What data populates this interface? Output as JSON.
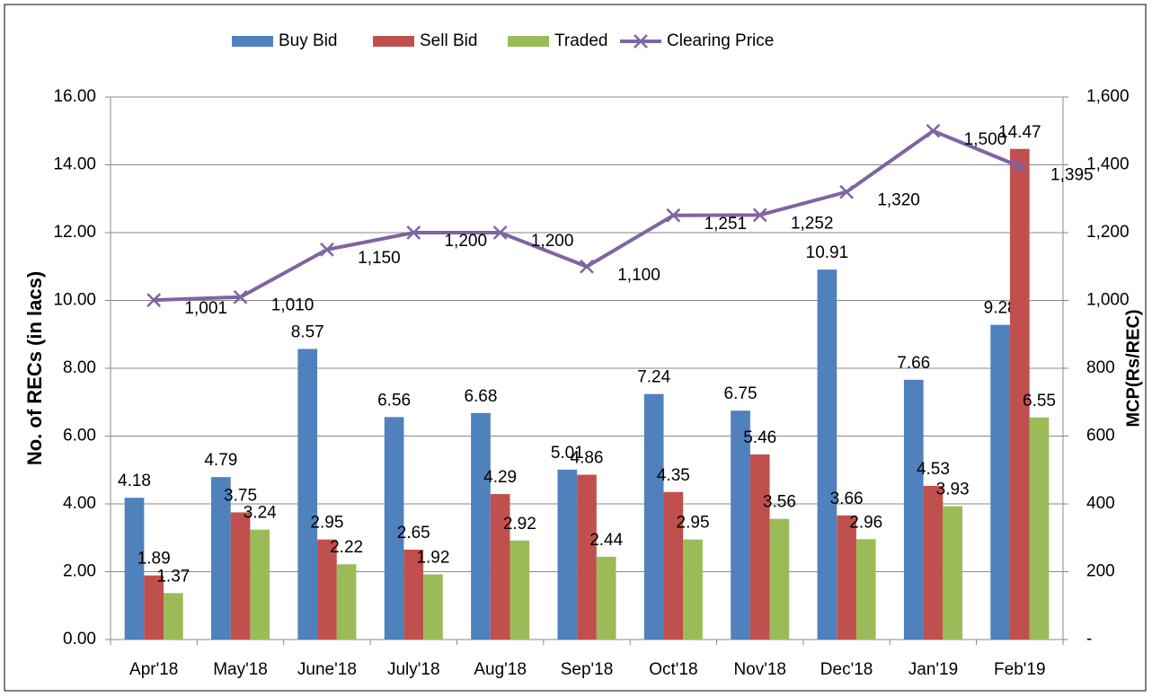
{
  "chart_data": {
    "type": "bar",
    "categories": [
      "Apr'18",
      "May'18",
      "June'18",
      "July'18",
      "Aug'18",
      "Sep'18",
      "Oct'18",
      "Nov'18",
      "Dec'18",
      "Jan'19",
      "Feb'19"
    ],
    "series": [
      {
        "name": "Buy Bid",
        "color": "#4f81bd",
        "values": [
          4.18,
          4.79,
          8.57,
          6.56,
          6.68,
          5.01,
          7.24,
          6.75,
          10.91,
          7.66,
          9.28
        ]
      },
      {
        "name": "Sell Bid",
        "color": "#c0504d",
        "values": [
          1.89,
          3.75,
          2.95,
          2.65,
          4.29,
          4.86,
          4.35,
          5.46,
          3.66,
          4.53,
          14.47
        ]
      },
      {
        "name": "Traded",
        "color": "#9bbb59",
        "values": [
          1.37,
          3.24,
          2.22,
          1.92,
          2.92,
          2.44,
          2.95,
          3.56,
          2.96,
          3.93,
          6.55
        ]
      },
      {
        "name": "Clearing Price",
        "color": "#8064a2",
        "type": "line",
        "axis": "y2",
        "values": [
          1001,
          1010,
          1150,
          1200,
          1200,
          1100,
          1251,
          1252,
          1320,
          1500,
          1395
        ],
        "value_labels": [
          "1,001",
          "1,010",
          "1,150",
          "1,200",
          "1,200",
          "1,100",
          "1,251",
          "1,252",
          "1,320",
          "1,500",
          "1,395"
        ]
      }
    ],
    "y_label": "No. of RECs (in lacs)",
    "y2_label": "MCP(Rs/REC)",
    "ylim": [
      0,
      16
    ],
    "yticks": [
      {
        "value": 0,
        "label": "0.00"
      },
      {
        "value": 2,
        "label": "2.00"
      },
      {
        "value": 4,
        "label": "4.00"
      },
      {
        "value": 6,
        "label": "6.00"
      },
      {
        "value": 8,
        "label": "8.00"
      },
      {
        "value": 10,
        "label": "10.00"
      },
      {
        "value": 12,
        "label": "12.00"
      },
      {
        "value": 14,
        "label": "14.00"
      },
      {
        "value": 16,
        "label": "16.00"
      }
    ],
    "y2lim": [
      0,
      1600
    ],
    "y2ticks": [
      {
        "value": 0,
        "label": "-"
      },
      200,
      400,
      600,
      800,
      {
        "value": 1000,
        "label": "1,000"
      },
      {
        "value": 1200,
        "label": "1,200"
      },
      {
        "value": 1400,
        "label": "1,400"
      },
      {
        "value": 1600,
        "label": "1,600"
      }
    ],
    "grid": true,
    "legend": "top"
  }
}
